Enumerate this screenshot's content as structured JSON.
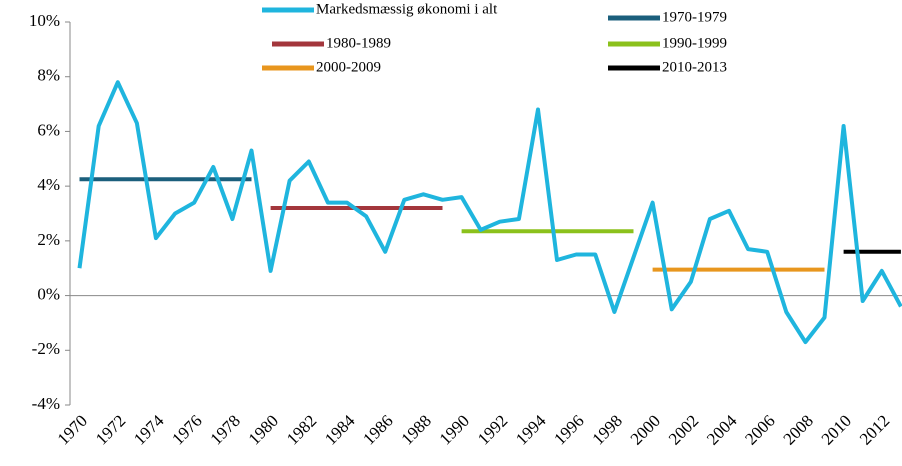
{
  "chart_data": {
    "type": "line",
    "categories": [
      "1970",
      null,
      "1972",
      null,
      "1974",
      null,
      "1976",
      null,
      "1978",
      null,
      "1980",
      null,
      "1982",
      null,
      "1984",
      null,
      "1986",
      null,
      "1988",
      null,
      "1990",
      null,
      "1992",
      null,
      "1994",
      null,
      "1996",
      null,
      "1998",
      null,
      "2000",
      null,
      "2002",
      null,
      "2004",
      null,
      "2006",
      null,
      "2008",
      null,
      "2010",
      null,
      "2012",
      null
    ],
    "series": [
      {
        "name": "Markedsmæssig økonomi i alt",
        "color": "#1fb5de",
        "values": [
          1.0,
          6.2,
          7.8,
          6.3,
          2.1,
          3.0,
          3.4,
          4.7,
          2.8,
          5.3,
          0.9,
          4.2,
          4.9,
          3.4,
          3.4,
          2.9,
          1.6,
          3.5,
          3.7,
          3.5,
          3.6,
          2.4,
          2.7,
          2.8,
          6.8,
          1.3,
          1.5,
          1.5,
          -0.6,
          1.4,
          3.4,
          -0.5,
          0.5,
          2.8,
          3.1,
          1.7,
          1.6,
          -0.6,
          -1.7,
          -0.8,
          6.2,
          -0.2,
          0.9,
          -0.4
        ]
      },
      {
        "name": "1970-1979",
        "color": "#1b5f7c",
        "values": [
          4.25,
          4.25,
          4.25,
          4.25,
          4.25,
          4.25,
          4.25,
          4.25,
          4.25,
          4.25,
          null,
          null,
          null,
          null,
          null,
          null,
          null,
          null,
          null,
          null,
          null,
          null,
          null,
          null,
          null,
          null,
          null,
          null,
          null,
          null,
          null,
          null,
          null,
          null,
          null,
          null,
          null,
          null,
          null,
          null,
          null,
          null,
          null,
          null
        ]
      },
      {
        "name": "1980-1989",
        "color": "#a3363c",
        "values": [
          null,
          null,
          null,
          null,
          null,
          null,
          null,
          null,
          null,
          null,
          3.2,
          3.2,
          3.2,
          3.2,
          3.2,
          3.2,
          3.2,
          3.2,
          3.2,
          3.2,
          null,
          null,
          null,
          null,
          null,
          null,
          null,
          null,
          null,
          null,
          null,
          null,
          null,
          null,
          null,
          null,
          null,
          null,
          null,
          null,
          null,
          null,
          null,
          null
        ]
      },
      {
        "name": "1990-1999",
        "color": "#8bc11c",
        "values": [
          null,
          null,
          null,
          null,
          null,
          null,
          null,
          null,
          null,
          null,
          null,
          null,
          null,
          null,
          null,
          null,
          null,
          null,
          null,
          null,
          2.35,
          2.35,
          2.35,
          2.35,
          2.35,
          2.35,
          2.35,
          2.35,
          2.35,
          2.35,
          null,
          null,
          null,
          null,
          null,
          null,
          null,
          null,
          null,
          null,
          null,
          null,
          null,
          null
        ]
      },
      {
        "name": "2000-2009",
        "color": "#e8961e",
        "values": [
          null,
          null,
          null,
          null,
          null,
          null,
          null,
          null,
          null,
          null,
          null,
          null,
          null,
          null,
          null,
          null,
          null,
          null,
          null,
          null,
          null,
          null,
          null,
          null,
          null,
          null,
          null,
          null,
          null,
          null,
          0.95,
          0.95,
          0.95,
          0.95,
          0.95,
          0.95,
          0.95,
          0.95,
          0.95,
          0.95,
          null,
          null,
          null,
          null
        ]
      },
      {
        "name": "2010-2013",
        "color": "#000000",
        "values": [
          null,
          null,
          null,
          null,
          null,
          null,
          null,
          null,
          null,
          null,
          null,
          null,
          null,
          null,
          null,
          null,
          null,
          null,
          null,
          null,
          null,
          null,
          null,
          null,
          null,
          null,
          null,
          null,
          null,
          null,
          null,
          null,
          null,
          null,
          null,
          null,
          null,
          null,
          null,
          null,
          1.6,
          1.6,
          1.6,
          1.6
        ]
      }
    ],
    "ylim": [
      -4,
      10
    ],
    "yticks": [
      {
        "value": -4,
        "label": "-4%"
      },
      {
        "value": -2,
        "label": "-2%"
      },
      {
        "value": 0,
        "label": "0%"
      },
      {
        "value": 2,
        "label": "2%"
      },
      {
        "value": 4,
        "label": "4%"
      },
      {
        "value": 6,
        "label": "6%"
      },
      {
        "value": 8,
        "label": "8%"
      },
      {
        "value": 10,
        "label": "10%"
      }
    ]
  }
}
